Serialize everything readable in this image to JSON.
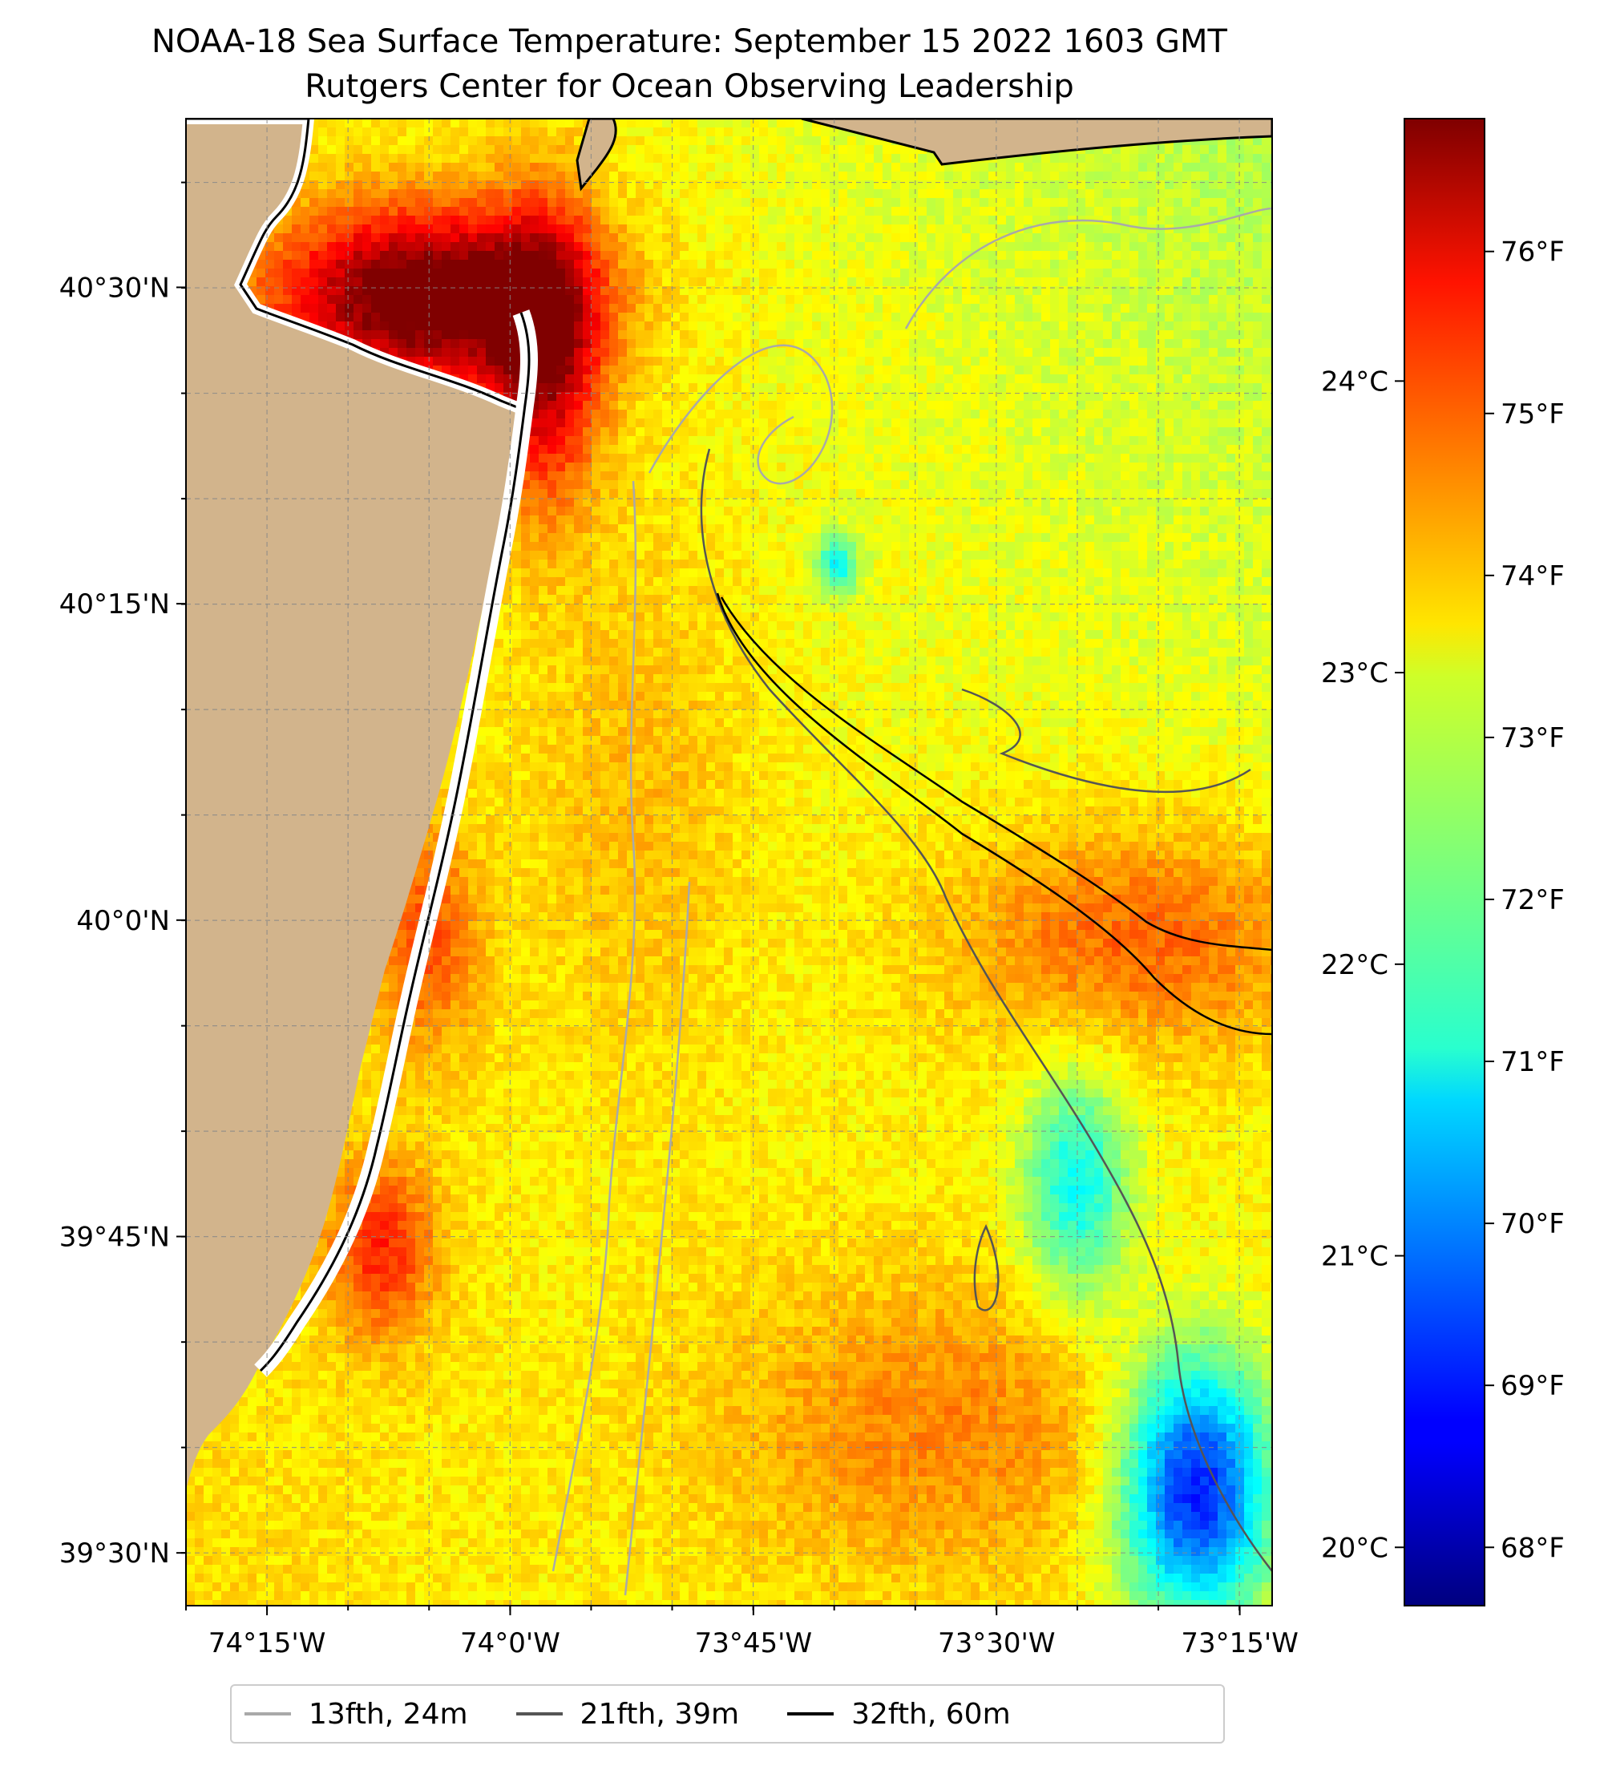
{
  "title": {
    "line1": "NOAA-18 Sea Surface Temperature: September 15 2022 1603 GMT",
    "line2": "Rutgers Center for Ocean Observing Leadership"
  },
  "map": {
    "type": "sea-surface-temperature",
    "extent": {
      "lon": [
        -74.3333,
        -73.2167
      ],
      "lat": [
        39.4583,
        40.6333
      ]
    },
    "land_color": "#d2b48c",
    "grid": true,
    "x_ticks": [
      {
        "lon": -74.25,
        "label": "74°15'W"
      },
      {
        "lon": -74.0,
        "label": "74°0'W"
      },
      {
        "lon": -73.75,
        "label": "73°45'W"
      },
      {
        "lon": -73.5,
        "label": "73°30'W"
      },
      {
        "lon": -73.25,
        "label": "73°15'W"
      }
    ],
    "y_ticks": [
      {
        "lat": 40.5,
        "label": "40°30'N"
      },
      {
        "lat": 40.25,
        "label": "40°15'N"
      },
      {
        "lat": 40.0,
        "label": "40°0'N"
      },
      {
        "lat": 39.75,
        "label": "39°45'N"
      },
      {
        "lat": 39.5,
        "label": "39°30'N"
      }
    ],
    "minor_step_deg": 0.0833
  },
  "colorbar": {
    "colormap": "jet",
    "range_c": [
      19.8,
      24.9
    ],
    "celsius_ticks": [
      {
        "value": 20,
        "label": "20°C"
      },
      {
        "value": 21,
        "label": "21°C"
      },
      {
        "value": 22,
        "label": "22°C"
      },
      {
        "value": 23,
        "label": "23°C"
      },
      {
        "value": 24,
        "label": "24°C"
      }
    ],
    "fahrenheit_ticks": [
      {
        "value": 68,
        "label": "68°F"
      },
      {
        "value": 69,
        "label": "69°F"
      },
      {
        "value": 70,
        "label": "70°F"
      },
      {
        "value": 71,
        "label": "71°F"
      },
      {
        "value": 72,
        "label": "72°F"
      },
      {
        "value": 73,
        "label": "73°F"
      },
      {
        "value": 74,
        "label": "74°F"
      },
      {
        "value": 75,
        "label": "75°F"
      },
      {
        "value": 76,
        "label": "76°F"
      }
    ]
  },
  "legend": {
    "items": [
      {
        "label": "13fth, 24m",
        "color": "#a9a9a9"
      },
      {
        "label": "21fth, 39m",
        "color": "#555555"
      },
      {
        "label": "32fth, 60m",
        "color": "#000000"
      }
    ]
  }
}
